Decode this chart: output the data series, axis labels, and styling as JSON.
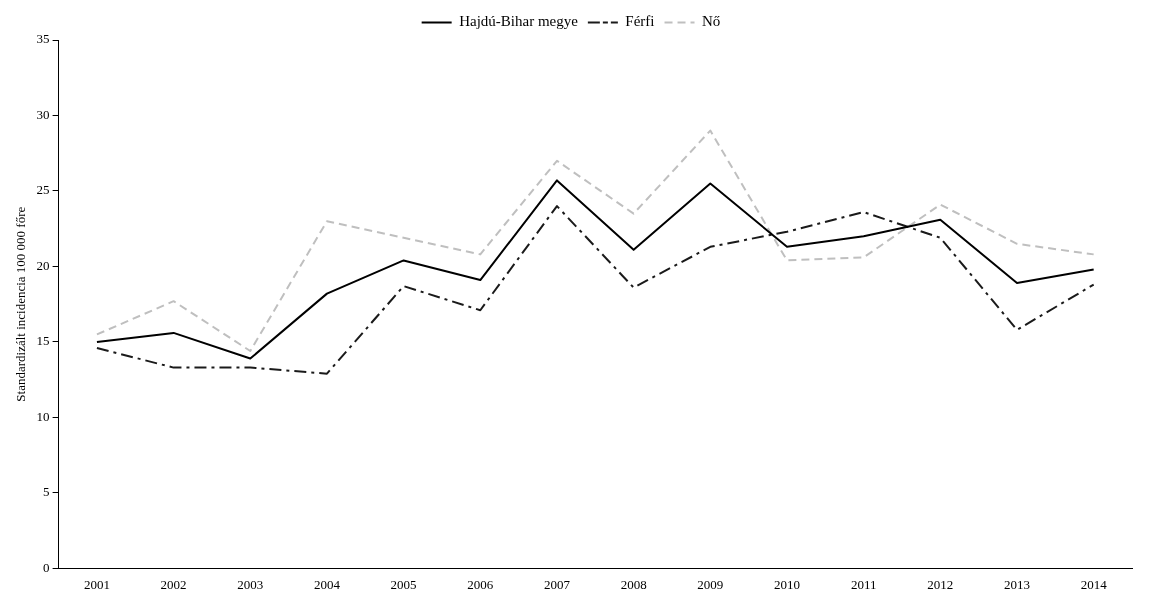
{
  "chart_data": {
    "type": "line",
    "ylabel": "Standardizált incidencia 100 000 főre",
    "categories": [
      "2001",
      "2002",
      "2003",
      "2004",
      "2005",
      "2006",
      "2007",
      "2008",
      "2009",
      "2010",
      "2011",
      "2012",
      "2013",
      "2014"
    ],
    "series": [
      {
        "name": "Hajdú-Bihar megye",
        "color": "#000000",
        "line_style": "solid",
        "values": [
          15.0,
          15.6,
          13.9,
          18.2,
          20.4,
          19.1,
          25.7,
          21.1,
          25.5,
          21.3,
          22.0,
          23.1,
          18.9,
          19.8
        ]
      },
      {
        "name": "Férfi",
        "color": "#1a1a1a",
        "line_style": "dashdot",
        "values": [
          14.6,
          13.3,
          13.3,
          12.9,
          18.7,
          17.1,
          24.0,
          18.6,
          21.3,
          22.3,
          23.6,
          21.9,
          15.8,
          18.8
        ]
      },
      {
        "name": "Nő",
        "color": "#bfbfbf",
        "line_style": "dashed",
        "values": [
          15.5,
          17.7,
          14.4,
          23.0,
          21.9,
          20.8,
          27.0,
          23.5,
          29.0,
          20.4,
          20.6,
          24.1,
          21.5,
          20.8
        ]
      }
    ],
    "ylim": [
      0,
      35
    ],
    "yticks": [
      0,
      5,
      10,
      15,
      20,
      25,
      30,
      35
    ],
    "grid": false,
    "legend": "top",
    "marker": "none"
  }
}
